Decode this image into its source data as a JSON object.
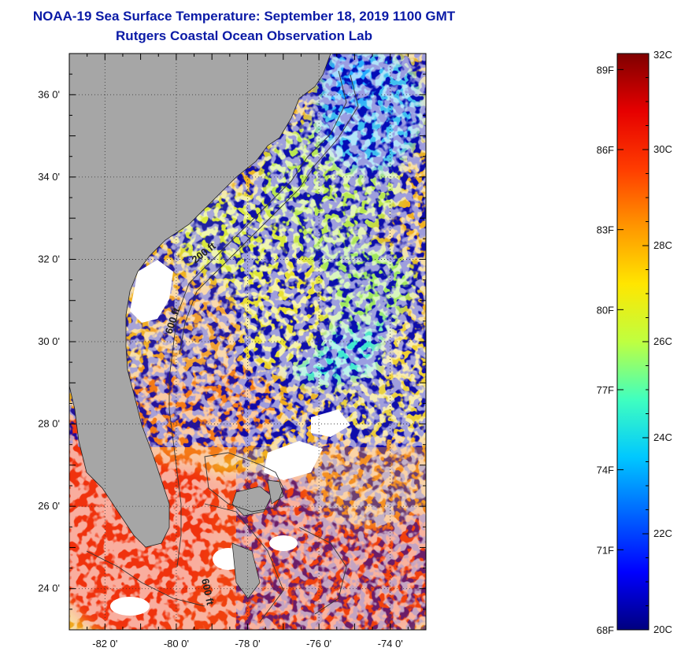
{
  "title": {
    "line1": "NOAA-19 Sea Surface Temperature:  September 18, 2019 1100 GMT",
    "line2": "Rutgers Coastal Ocean Observation Lab"
  },
  "axes": {
    "y_ticks": [
      {
        "value": 36,
        "label": "36 0'"
      },
      {
        "value": 34,
        "label": "34 0'"
      },
      {
        "value": 32,
        "label": "32 0'"
      },
      {
        "value": 30,
        "label": "30 0'"
      },
      {
        "value": 28,
        "label": "28 0'"
      },
      {
        "value": 26,
        "label": "26 0'"
      },
      {
        "value": 24,
        "label": "24 0'"
      }
    ],
    "x_ticks": [
      {
        "value": -82,
        "label": "-82 0'"
      },
      {
        "value": -80,
        "label": "-80 0'"
      },
      {
        "value": -78,
        "label": "-78 0'"
      },
      {
        "value": -76,
        "label": "-76 0'"
      },
      {
        "value": -74,
        "label": "-74 0'"
      }
    ],
    "lon_range": [
      -83.0,
      -73.0
    ],
    "lat_range": [
      23.0,
      37.0
    ]
  },
  "contour_labels": [
    {
      "text": "200 ft"
    },
    {
      "text": "600 ft"
    },
    {
      "text": "600 ft"
    }
  ],
  "colorbar": {
    "celsius": [
      {
        "value": 32,
        "label": "32C"
      },
      {
        "value": 30,
        "label": "30C"
      },
      {
        "value": 28,
        "label": "28C"
      },
      {
        "value": 26,
        "label": "26C"
      },
      {
        "value": 24,
        "label": "24C"
      },
      {
        "value": 22,
        "label": "22C"
      },
      {
        "value": 20,
        "label": "20C"
      }
    ],
    "fahrenheit": [
      {
        "value": 89,
        "label": "89F"
      },
      {
        "value": 86,
        "label": "86F"
      },
      {
        "value": 83,
        "label": "83F"
      },
      {
        "value": 80,
        "label": "80F"
      },
      {
        "value": 77,
        "label": "77F"
      },
      {
        "value": 74,
        "label": "74F"
      },
      {
        "value": 71,
        "label": "71F"
      },
      {
        "value": 68,
        "label": "68F"
      }
    ],
    "range_c": [
      20,
      32
    ],
    "colors": [
      "#00007f",
      "#0000ff",
      "#0064ff",
      "#00c8ff",
      "#40ffbf",
      "#bfff40",
      "#ffe600",
      "#ff9600",
      "#ff3c00",
      "#e60000",
      "#7f0000"
    ]
  },
  "land_color": "#a6a6a6"
}
